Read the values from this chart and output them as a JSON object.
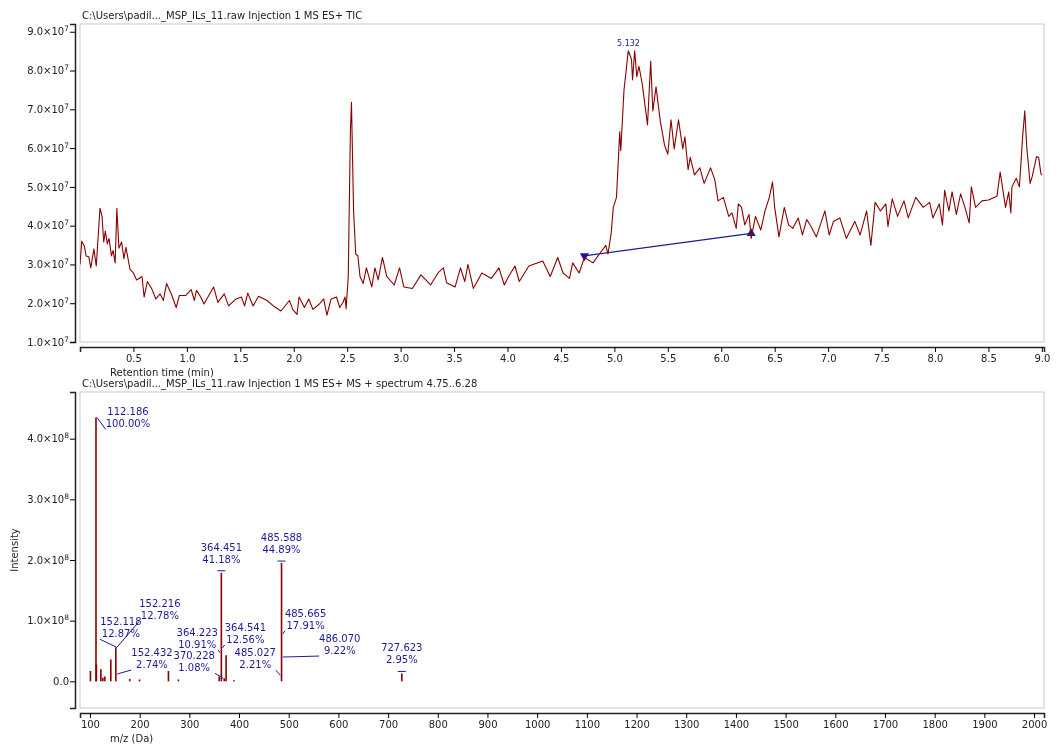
{
  "chart_data": [
    {
      "type": "line",
      "title": "C:\\Users\\padil..._MSP_ILs_11.raw Injection 1 MS ES+ TIC",
      "xlabel": "Retention time (min)",
      "xlim": [
        0,
        9.02
      ],
      "ylim": [
        10000000.0,
        92000000.0
      ],
      "xticks": [
        0.5,
        {
          "value": 1,
          "label": "1.0"
        },
        1.5,
        {
          "value": 2,
          "label": "2.0"
        },
        2.5,
        {
          "value": 3,
          "label": "3.0"
        },
        3.5,
        {
          "value": 4,
          "label": "4.0"
        },
        4.5,
        {
          "value": 5,
          "label": "5.0"
        },
        5.5,
        {
          "value": 6,
          "label": "6.0"
        },
        6.5,
        {
          "value": 7,
          "label": "7.0"
        },
        7.5,
        {
          "value": 8,
          "label": "8.0"
        },
        8.5,
        {
          "value": 9,
          "label": "9.0"
        }
      ],
      "yticks": [
        {
          "value": 10000000.0,
          "label": "1.0×10$^{7}$"
        },
        {
          "value": 20000000.0,
          "label": "2.0×10$^{7}$"
        },
        {
          "value": 30000000.0,
          "label": "3.0×10$^{7}$"
        },
        {
          "value": 40000000.0,
          "label": "4.0×10$^{7}$"
        },
        {
          "value": 50000000.0,
          "label": "5.0×10$^{7}$"
        },
        {
          "value": 60000000.0,
          "label": "6.0×10$^{7}$"
        },
        {
          "value": 70000000.0,
          "label": "7.0×10$^{7}$"
        },
        {
          "value": 80000000.0,
          "label": "8.0×10$^{7}$"
        },
        {
          "value": 90000000.0,
          "label": "9.0×10$^{7}$"
        }
      ],
      "line_style": "solid",
      "annotations": [
        {
          "text": "5.132",
          "x": 5.132,
          "y": 85100000.0
        }
      ],
      "series": [
        {
          "type": "line",
          "color": "#1a1a99",
          "marker": "triangle",
          "x": [
            4.72,
            6.28
          ],
          "values": [
            32200000.0,
            38000000.0
          ]
        },
        {
          "color": "#8b0000",
          "x": [
            0.0,
            0.016,
            0.041,
            0.057,
            0.082,
            0.101,
            0.13,
            0.152,
            0.187,
            0.206,
            0.222,
            0.237,
            0.256,
            0.272,
            0.294,
            0.31,
            0.329,
            0.345,
            0.364,
            0.389,
            0.411,
            0.43,
            0.468,
            0.5,
            0.53,
            0.58,
            0.6,
            0.63,
            0.67,
            0.71,
            0.75,
            0.78,
            0.81,
            0.86,
            0.9,
            0.93,
            0.99,
            1.04,
            1.07,
            1.09,
            1.13,
            1.16,
            1.25,
            1.29,
            1.35,
            1.39,
            1.46,
            1.51,
            1.54,
            1.57,
            1.62,
            1.67,
            1.75,
            1.81,
            1.88,
            1.96,
            1.99,
            2.03,
            2.05,
            2.1,
            2.14,
            2.18,
            2.24,
            2.28,
            2.31,
            2.35,
            2.4,
            2.43,
            2.46,
            2.48,
            2.49,
            2.51,
            2.53,
            2.54,
            2.56,
            2.58,
            2.6,
            2.62,
            2.65,
            2.68,
            2.73,
            2.76,
            2.79,
            2.83,
            2.87,
            2.94,
            2.99,
            3.03,
            3.11,
            3.19,
            3.28,
            3.35,
            3.4,
            3.43,
            3.51,
            3.56,
            3.6,
            3.63,
            3.68,
            3.76,
            3.85,
            3.92,
            3.97,
            4.01,
            4.07,
            4.11,
            4.2,
            4.33,
            4.4,
            4.47,
            4.52,
            4.58,
            4.61,
            4.67,
            4.72,
            4.8,
            4.86,
            4.92,
            4.94,
            4.97,
            4.99,
            5.02,
            5.05,
            5.06,
            5.09,
            5.13,
            5.16,
            5.17,
            5.19,
            5.21,
            5.23,
            5.26,
            5.31,
            5.34,
            5.36,
            5.39,
            5.43,
            5.47,
            5.5,
            5.53,
            5.56,
            5.6,
            5.64,
            5.66,
            5.69,
            5.71,
            5.75,
            5.8,
            5.84,
            5.9,
            5.94,
            5.97,
            6.02,
            6.07,
            6.1,
            6.14,
            6.16,
            6.19,
            6.22,
            6.26,
            6.28,
            6.32,
            6.37,
            6.41,
            6.45,
            6.48,
            6.5,
            6.54,
            6.59,
            6.63,
            6.67,
            6.72,
            6.76,
            6.8,
            6.84,
            6.89,
            6.97,
            7.01,
            7.05,
            7.11,
            7.17,
            7.25,
            7.3,
            7.36,
            7.4,
            7.44,
            7.49,
            7.54,
            7.56,
            7.6,
            7.65,
            7.71,
            7.75,
            7.82,
            7.89,
            7.95,
            7.98,
            8.04,
            8.07,
            8.09,
            8.13,
            8.16,
            8.2,
            8.24,
            8.28,
            8.32,
            8.34,
            8.38,
            8.44,
            8.5,
            8.58,
            8.61,
            8.66,
            8.69,
            8.71,
            8.72,
            8.76,
            8.79,
            8.82,
            8.84,
            8.86,
            8.89,
            8.91,
            8.95,
            8.97,
            8.99,
            9.0
          ],
          "values": [
            30000000.0,
            36000000.0,
            34700000.0,
            32200000.0,
            32000000.0,
            29100000.0,
            34000000.0,
            29600000.0,
            44500000.0,
            42400000.0,
            35800000.0,
            38600000.0,
            35300000.0,
            36700000.0,
            32200000.0,
            33600000.0,
            30400000.0,
            44500000.0,
            34200000.0,
            35800000.0,
            31500000.0,
            34400000.0,
            28700000.0,
            27800000.0,
            26000000.0,
            26900000.0,
            21600000.0,
            25600000.0,
            23800000.0,
            21100000.0,
            22400000.0,
            20700000.0,
            25100000.0,
            22000000.0,
            18900000.0,
            22000000.0,
            22000000.0,
            23500000.0,
            20700000.0,
            23300000.0,
            21600000.0,
            19800000.0,
            24200000.0,
            20200000.0,
            22400000.0,
            19300000.0,
            21100000.0,
            21600000.0,
            19300000.0,
            22600000.0,
            19300000.0,
            21800000.0,
            20700000.0,
            19300000.0,
            18000000.0,
            20700000.0,
            18400000.0,
            17100000.0,
            21600000.0,
            18900000.0,
            21100000.0,
            18400000.0,
            19800000.0,
            21100000.0,
            16900000.0,
            21100000.0,
            21600000.0,
            18900000.0,
            20200000.0,
            21600000.0,
            18600000.0,
            26900000.0,
            64200000.0,
            71800000.0,
            43800000.0,
            32700000.0,
            32200000.0,
            26900000.0,
            25100000.0,
            29100000.0,
            24200000.0,
            29100000.0,
            26000000.0,
            31800000.0,
            26900000.0,
            24700000.0,
            29100000.0,
            24200000.0,
            23800000.0,
            27300000.0,
            24700000.0,
            27800000.0,
            29100000.0,
            25300000.0,
            24200000.0,
            29100000.0,
            25600000.0,
            30000000.0,
            23800000.0,
            27800000.0,
            26400000.0,
            29100000.0,
            24700000.0,
            26900000.0,
            29600000.0,
            25600000.0,
            29600000.0,
            30900000.0,
            26900000.0,
            31800000.0,
            27800000.0,
            26400000.0,
            30400000.0,
            27800000.0,
            31800000.0,
            30400000.0,
            32700000.0,
            34900000.0,
            32700000.0,
            38000000.0,
            44700000.0,
            47300000.0,
            64200000.0,
            59300000.0,
            74900000.0,
            85100000.0,
            82900000.0,
            77600000.0,
            85100000.0,
            78400000.0,
            81100000.0,
            76700000.0,
            66000000.0,
            82400000.0,
            69600000.0,
            75800000.0,
            66900000.0,
            60700000.0,
            58400000.0,
            67300000.0,
            59800000.0,
            67300000.0,
            59800000.0,
            62900000.0,
            54400000.0,
            57600000.0,
            53100000.0,
            54900000.0,
            50900000.0,
            54900000.0,
            51800000.0,
            46400000.0,
            47300000.0,
            42400000.0,
            43300000.0,
            39300000.0,
            45600000.0,
            44700000.0,
            40200000.0,
            42900000.0,
            36700000.0,
            42400000.0,
            38900000.0,
            43800000.0,
            47300000.0,
            51300000.0,
            44700000.0,
            37100000.0,
            44700000.0,
            40200000.0,
            39300000.0,
            42000000.0,
            37600000.0,
            41600000.0,
            39800000.0,
            37100000.0,
            43800000.0,
            37600000.0,
            41100000.0,
            42000000.0,
            36700000.0,
            41100000.0,
            37600000.0,
            43800000.0,
            34900000.0,
            46000000.0,
            43800000.0,
            45600000.0,
            39800000.0,
            46900000.0,
            42400000.0,
            46400000.0,
            42000000.0,
            47300000.0,
            44700000.0,
            46000000.0,
            42000000.0,
            45600000.0,
            40200000.0,
            49100000.0,
            43800000.0,
            48700000.0,
            42900000.0,
            48200000.0,
            44700000.0,
            40700000.0,
            50000000.0,
            44700000.0,
            46400000.0,
            46600000.0,
            47600000.0,
            53800000.0,
            44700000.0,
            48700000.0,
            43300000.0,
            50000000.0,
            52200000.0,
            50000000.0,
            62900000.0,
            69600000.0,
            59800000.0,
            50900000.0,
            52700000.0,
            57800000.0,
            57600000.0,
            53600000.0,
            53000000.0
          ]
        }
      ]
    },
    {
      "type": "bar",
      "title": "C:\\Users\\padil..._MSP_ILs_11.raw Injection 1 MS ES+ MS + spectrum 4.75..6.28",
      "xlabel": "m/z (Da)",
      "ylabel": "Intensity",
      "xlim": [
        80,
        2020
      ],
      "ylim": [
        -44000000.0,
        477000000.0
      ],
      "xticks": [
        100,
        200,
        300,
        400,
        500,
        600,
        700,
        800,
        900,
        1000,
        1100,
        1200,
        1300,
        1400,
        1500,
        1600,
        1700,
        1800,
        1900,
        2000
      ],
      "yticks": [
        {
          "value": 0,
          "label": "0.0"
        },
        {
          "value": 100000000.0,
          "label": "1.0×10$^{8}$"
        },
        {
          "value": 200000000.0,
          "label": "2.0×10$^{8}$"
        },
        {
          "value": 300000000.0,
          "label": "3.0×10$^{8}$"
        },
        {
          "value": 400000000.0,
          "label": "4.0×10$^{8}$"
        }
      ],
      "annotations": [
        {
          "text": "112.186\n100.00%",
          "x": 112.186,
          "y": 435000000.0
        },
        {
          "text": "152.118\n12.87%",
          "x": 152.118,
          "y": 56000000.0
        },
        {
          "text": "152.216\n12.78%",
          "x": 152.216,
          "y": 56000000.0
        },
        {
          "text": "152.432\n2.74%",
          "x": 152.432,
          "y": 12000000.0
        },
        {
          "text": "364.223\n10.91%",
          "x": 364.223,
          "y": 47000000.0
        },
        {
          "text": "364.451\n41.18%",
          "x": 364.451,
          "y": 179000000.0
        },
        {
          "text": "364.541\n12.56%",
          "x": 364.541,
          "y": 55000000.0
        },
        {
          "text": "370.228\n1.08%",
          "x": 370.228,
          "y": 5000000.0
        },
        {
          "text": "485.027\n2.21%",
          "x": 485.027,
          "y": 10000000.0
        },
        {
          "text": "485.588\n44.89%",
          "x": 485.588,
          "y": 195000000.0
        },
        {
          "text": "485.665\n17.91%",
          "x": 485.665,
          "y": 78000000.0
        },
        {
          "text": "486.070\n9.22%",
          "x": 486.07,
          "y": 40000000.0
        },
        {
          "text": "727.623\n2.95%",
          "x": 727.623,
          "y": 13000000.0
        }
      ],
      "series": [
        {
          "color": "#8b0000",
          "x": [
            101,
            112.186,
            113,
            122,
            126,
            130,
            142,
            152.118,
            180,
            200,
            258,
            278,
            360,
            364.451,
            370.228,
            374,
            390,
            485.588,
            727.623
          ],
          "values": [
            17000000.0,
            435000000.0,
            28000000.0,
            20000000.0,
            6000000.0,
            8000000.0,
            36000000.0,
            56000000.0,
            4000000.0,
            3000000.0,
            17000000.0,
            3000000.0,
            8000000.0,
            179000000.0,
            5000000.0,
            43000000.0,
            2000000.0,
            195000000.0,
            13000000.0
          ]
        }
      ]
    }
  ]
}
